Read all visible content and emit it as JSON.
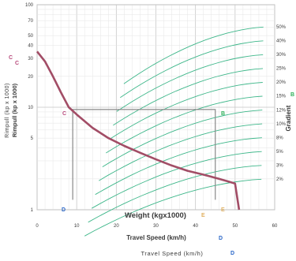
{
  "chart_data": {
    "type": "line",
    "title": "",
    "scale": "log-y",
    "xlabel_weight": "Weight (kgx1000)",
    "xlabel_speed": "Travel Speed (km/h)",
    "xlabel_speed_repeat": "Travel Speed (km/h)",
    "ylabel_rimpull": "Rimpull (kp x 1000)",
    "ylabel_rimpull_repeat": "Rimpull (kp x 1000)",
    "y2label": "Gradient",
    "xlim": [
      0,
      60
    ],
    "ylim": [
      1,
      100
    ],
    "x_ticks": [
      "0",
      "10",
      "20",
      "30",
      "40",
      "50",
      "60"
    ],
    "y_ticks": [
      "1",
      "5",
      "10",
      "20",
      "30",
      "40",
      "50",
      "70",
      "100"
    ],
    "gradient_labels": [
      "2%",
      "3%",
      "5%",
      "8%",
      "10%",
      "12%",
      "15%",
      "20%",
      "25%",
      "30%",
      "40%",
      "50%"
    ],
    "markers": {
      "C": "C",
      "D": "D",
      "E": "E",
      "B": "B"
    },
    "marker_colors": {
      "C": "#b84a7c",
      "D": "#2a66c8",
      "E": "#e0b060",
      "B": "#2fb05a"
    },
    "curve_color": "#a24d66",
    "gradient_color": "#3eb78a",
    "series": [
      {
        "name": "",
        "x": [
          0,
          2,
          4,
          6,
          8,
          10,
          14,
          18,
          22,
          26,
          30,
          34,
          38,
          42,
          44,
          46,
          48,
          50,
          51
        ],
        "y": [
          35,
          28,
          20,
          14,
          10,
          8.5,
          6.3,
          5.0,
          4.2,
          3.6,
          3.1,
          2.7,
          2.4,
          2.2,
          2.1,
          2.0,
          1.9,
          1.8,
          1.0
        ]
      }
    ],
    "operating_point": {
      "x": 45,
      "y": 9.5
    }
  }
}
